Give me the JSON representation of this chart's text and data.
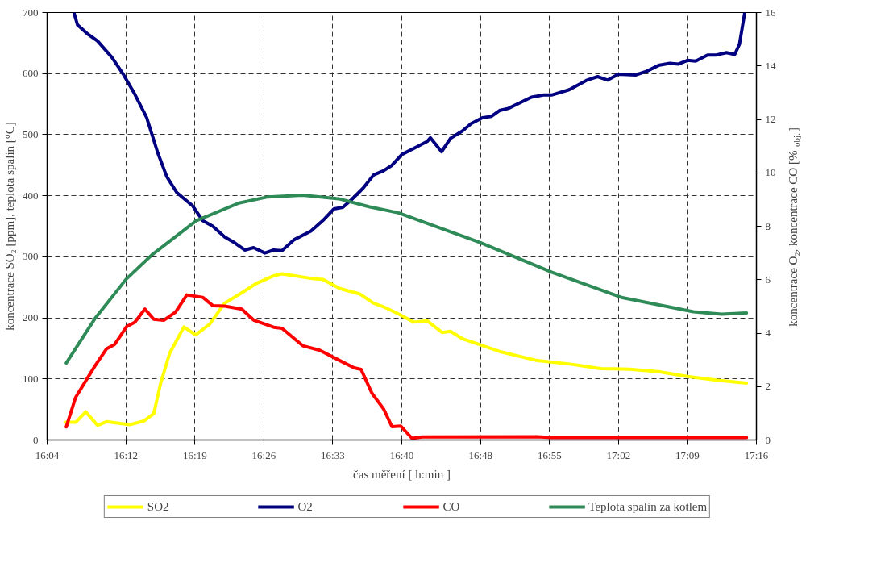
{
  "chart_data": {
    "type": "line",
    "xlabel": "čas měření [ h:min ]",
    "ylabel": "koncentrace SO₂ [ppm], teplota spalin [°C]",
    "y2label": "koncentrace O₂, koncentrace CO [%$_{obj.}$]",
    "xlim": [
      16.0667,
      17.2667
    ],
    "xticks": [
      {
        "value": 16.0667,
        "label": "16:04"
      },
      {
        "value": 16.2,
        "label": "16:12"
      },
      {
        "value": 16.3167,
        "label": "16:19"
      },
      {
        "value": 16.4333,
        "label": "16:26"
      },
      {
        "value": 16.55,
        "label": "16:33"
      },
      {
        "value": 16.6667,
        "label": "16:40"
      },
      {
        "value": 16.8,
        "label": "16:48"
      },
      {
        "value": 16.9167,
        "label": "16:55"
      },
      {
        "value": 17.0333,
        "label": "17:02"
      },
      {
        "value": 17.15,
        "label": "17:09"
      },
      {
        "value": 17.2667,
        "label": "17:16"
      }
    ],
    "ylim": [
      0,
      700
    ],
    "yticks": [
      0,
      100,
      200,
      300,
      400,
      500,
      600,
      700
    ],
    "y2lim": [
      0,
      16
    ],
    "y2ticks": [
      0,
      2,
      4,
      6,
      8,
      10,
      12,
      14,
      16
    ],
    "grid": true,
    "legend": "bottom",
    "marker": "none",
    "line_style": "solid",
    "series": [
      {
        "name": "SO2",
        "color": "#ffff00",
        "x": [
          16.098,
          16.115,
          16.132,
          16.152,
          16.167,
          16.206,
          16.23,
          16.247,
          16.259,
          16.274,
          16.298,
          16.318,
          16.342,
          16.367,
          16.396,
          16.42,
          16.45,
          16.464,
          16.518,
          16.533,
          16.562,
          16.596,
          16.619,
          16.636,
          16.66,
          16.687,
          16.71,
          16.735,
          16.749,
          16.769,
          16.832,
          16.896,
          16.954,
          17.003,
          17.052,
          17.101,
          17.15,
          17.199,
          17.25
        ],
        "values": [
          29,
          29,
          46,
          24,
          30,
          25,
          31,
          43,
          94,
          142,
          185,
          172,
          190,
          224,
          241,
          256,
          269,
          272,
          264,
          263,
          248,
          239,
          224,
          218,
          207,
          193,
          195,
          176,
          178,
          166,
          145,
          130,
          124,
          117,
          116,
          112,
          104,
          98,
          93
        ]
      },
      {
        "name": "O2",
        "color": "#000080",
        "axis": "y2",
        "x": [
          16.112,
          16.118,
          16.135,
          16.152,
          16.176,
          16.196,
          16.215,
          16.235,
          16.254,
          16.269,
          16.286,
          16.313,
          16.33,
          16.347,
          16.367,
          16.384,
          16.401,
          16.416,
          16.435,
          16.45,
          16.464,
          16.484,
          16.513,
          16.533,
          16.552,
          16.567,
          16.581,
          16.601,
          16.619,
          16.636,
          16.65,
          16.667,
          16.691,
          16.71,
          16.715,
          16.734,
          16.749,
          16.769,
          16.784,
          16.803,
          16.818,
          16.832,
          16.847,
          16.886,
          16.906,
          16.92,
          16.95,
          16.979,
          16.998,
          17.015,
          17.033,
          17.062,
          17.081,
          17.101,
          17.12,
          17.135,
          17.15,
          17.164,
          17.184,
          17.199,
          17.216,
          17.23,
          17.238,
          17.247
        ],
        "values": [
          16.0,
          15.54,
          15.2,
          14.93,
          14.33,
          13.67,
          12.94,
          12.07,
          10.74,
          9.86,
          9.26,
          8.76,
          8.21,
          8.0,
          7.6,
          7.38,
          7.11,
          7.2,
          7.0,
          7.11,
          7.09,
          7.49,
          7.82,
          8.21,
          8.65,
          8.71,
          8.98,
          9.42,
          9.92,
          10.08,
          10.28,
          10.69,
          10.96,
          11.18,
          11.31,
          10.79,
          11.29,
          11.56,
          11.84,
          12.06,
          12.11,
          12.33,
          12.41,
          12.83,
          12.91,
          12.91,
          13.11,
          13.46,
          13.6,
          13.47,
          13.69,
          13.66,
          13.8,
          14.02,
          14.1,
          14.07,
          14.21,
          14.18,
          14.41,
          14.41,
          14.5,
          14.43,
          14.81,
          16.0
        ]
      },
      {
        "name": "CO",
        "color": "#ff0000",
        "axis": "y2",
        "x": [
          16.099,
          16.115,
          16.147,
          16.167,
          16.181,
          16.201,
          16.215,
          16.232,
          16.247,
          16.264,
          16.284,
          16.303,
          16.33,
          16.347,
          16.367,
          16.396,
          16.416,
          16.45,
          16.464,
          16.499,
          16.528,
          16.562,
          16.586,
          16.598,
          16.616,
          16.636,
          16.65,
          16.665,
          16.684,
          16.701,
          16.896,
          16.92,
          17.25
        ],
        "values": [
          0.49,
          1.6,
          2.75,
          3.41,
          3.58,
          4.24,
          4.41,
          4.9,
          4.52,
          4.48,
          4.79,
          5.43,
          5.34,
          5.03,
          5.01,
          4.9,
          4.49,
          4.22,
          4.18,
          3.53,
          3.36,
          2.97,
          2.7,
          2.64,
          1.76,
          1.16,
          0.5,
          0.52,
          0.06,
          0.11,
          0.12,
          0.09,
          0.09
        ]
      },
      {
        "name": "Teplota spalin za kotlem",
        "color": "#2e8b57",
        "x": [
          16.099,
          16.147,
          16.2,
          16.245,
          16.319,
          16.391,
          16.44,
          16.499,
          16.56,
          16.611,
          16.661,
          16.8,
          16.92,
          17.04,
          17.16,
          17.208,
          17.25
        ],
        "values": [
          126,
          198,
          263,
          304,
          359,
          388,
          398,
          401,
          395,
          382,
          372,
          323,
          275,
          233,
          210,
          206,
          208
        ]
      }
    ]
  }
}
